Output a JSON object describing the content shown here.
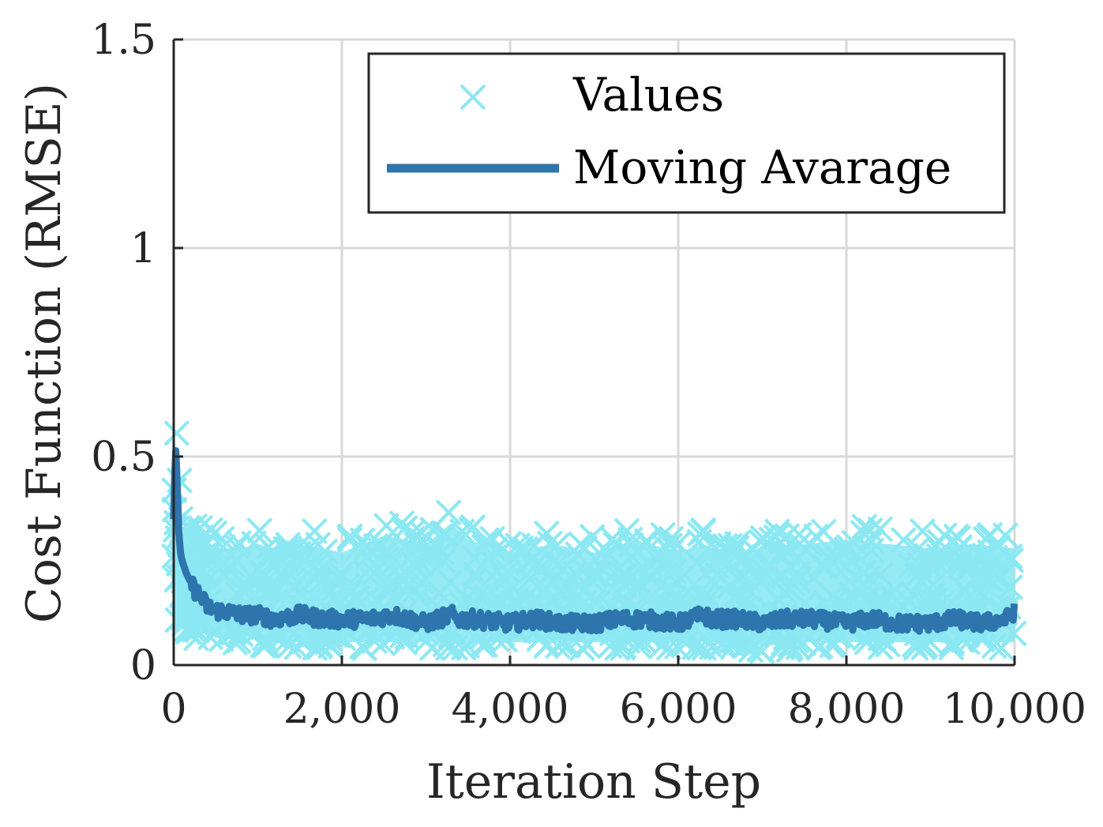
{
  "chart_data": {
    "type": "line",
    "title": "",
    "xlabel": "Iteration Step",
    "ylabel": "Cost Function (RMSE)",
    "xlim": [
      0,
      10000
    ],
    "ylim": [
      0,
      1.5
    ],
    "x_ticks": [
      0,
      2000,
      4000,
      6000,
      8000,
      10000
    ],
    "x_tick_labels": [
      "0",
      "2,000",
      "4,000",
      "6,000",
      "8,000",
      "10,000"
    ],
    "y_ticks": [
      0,
      0.5,
      1,
      1.5
    ],
    "y_tick_labels": [
      "0",
      "0.5",
      "1",
      "1.5"
    ],
    "grid": true,
    "legend_position": "top-right",
    "series": [
      {
        "name": "Values",
        "style": "x-markers",
        "color": "#8BE8F2",
        "x": [
          0,
          50,
          100,
          200,
          300,
          400,
          500,
          600,
          800,
          1000,
          1200,
          1500,
          2000,
          2500,
          3000,
          3300,
          3500,
          4000,
          4500,
          5000,
          5500,
          6000,
          6300,
          6500,
          7000,
          7500,
          8000,
          8500,
          9000,
          9500,
          10000
        ],
        "y_upper": [
          0.62,
          0.58,
          0.36,
          0.34,
          0.33,
          0.33,
          0.32,
          0.32,
          0.32,
          0.33,
          0.32,
          0.33,
          0.31,
          0.35,
          0.33,
          0.38,
          0.34,
          0.31,
          0.33,
          0.31,
          0.34,
          0.31,
          0.33,
          0.31,
          0.32,
          0.33,
          0.34,
          0.33,
          0.32,
          0.33,
          0.32
        ],
        "y_lower": [
          0.13,
          0.1,
          0.09,
          0.07,
          0.06,
          0.06,
          0.05,
          0.05,
          0.05,
          0.05,
          0.04,
          0.04,
          0.04,
          0.04,
          0.04,
          0.04,
          0.04,
          0.04,
          0.04,
          0.04,
          0.04,
          0.04,
          0.04,
          0.04,
          0.03,
          0.04,
          0.04,
          0.04,
          0.04,
          0.04,
          0.04
        ]
      },
      {
        "name": "Moving Avarage",
        "style": "line",
        "color": "#2E74AD",
        "x": [
          0,
          20,
          40,
          60,
          80,
          100,
          150,
          200,
          250,
          300,
          400,
          500,
          600,
          800,
          1000,
          1200,
          1500,
          1800,
          2000,
          2300,
          2600,
          2800,
          3000,
          3300,
          3400,
          3600,
          4000,
          4300,
          4600,
          5000,
          5300,
          5600,
          6000,
          6300,
          6400,
          6700,
          7000,
          7300,
          7600,
          8000,
          8300,
          8600,
          9000,
          9300,
          9600,
          9900,
          10000
        ],
        "y": [
          0.35,
          0.53,
          0.45,
          0.32,
          0.27,
          0.25,
          0.22,
          0.2,
          0.18,
          0.17,
          0.14,
          0.13,
          0.13,
          0.12,
          0.12,
          0.11,
          0.12,
          0.11,
          0.11,
          0.11,
          0.12,
          0.11,
          0.1,
          0.12,
          0.11,
          0.11,
          0.1,
          0.11,
          0.1,
          0.1,
          0.11,
          0.11,
          0.1,
          0.12,
          0.11,
          0.11,
          0.1,
          0.11,
          0.11,
          0.1,
          0.11,
          0.1,
          0.1,
          0.11,
          0.1,
          0.11,
          0.13
        ]
      }
    ]
  },
  "legend": {
    "items": [
      {
        "label": "Values",
        "symbol": "x-marker",
        "color": "#8BE8F2"
      },
      {
        "label": "Moving Avarage",
        "symbol": "line",
        "color": "#2E74AD"
      }
    ]
  }
}
